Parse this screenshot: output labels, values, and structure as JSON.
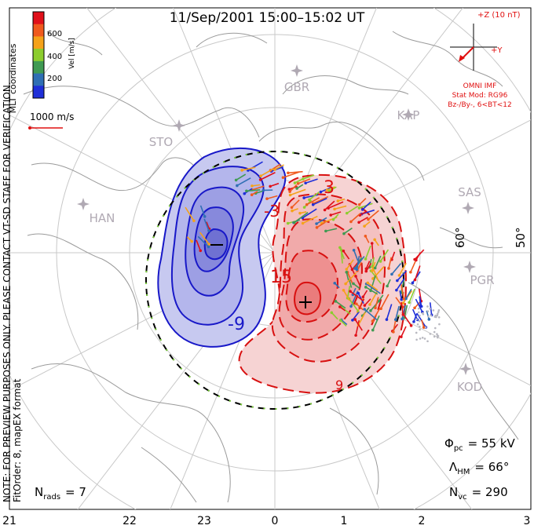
{
  "header": {
    "title": "11/Sep/2001  15:00–15:02  UT"
  },
  "colorbar": {
    "label": "Vel [m/s]",
    "ticks": [
      "600",
      "400",
      "200"
    ],
    "colors": [
      "#e0101a",
      "#f05a1e",
      "#f5a21a",
      "#8ccd2e",
      "#3f9a52",
      "#2f6fb4",
      "#1f2fd8"
    ]
  },
  "side_labels": {
    "coords": "MLT coordinates",
    "note": "NOTE: FOR PREVIEW PURPOSES ONLY. PLEASE CONTACT VT-SD STAFF FOR VERIFICATION.",
    "fit": "FitOrder: 8, mapEX format"
  },
  "scale": {
    "label": "1000 m/s"
  },
  "imf": {
    "bz_label": "+Z (10 nT)",
    "by_label": "+Y",
    "model_lines": [
      "OMNI IMF",
      "Stat Mod: RG96",
      "Bz-/By-, 6<BT<12"
    ]
  },
  "stations": [
    "GBR",
    "STO",
    "KAP",
    "HAN",
    "SAS",
    "PGR",
    "KOD"
  ],
  "latitudes": [
    "60°",
    "50°"
  ],
  "contours": {
    "labels": [
      "3",
      "-3",
      "-9",
      "15",
      "9"
    ]
  },
  "stats": {
    "phi_sym": "Φ",
    "phi_sub": "pc",
    "phi_val": "=  55 kV",
    "lam_sym": "Λ",
    "lam_sub": "HM",
    "lam_val": "=  66°",
    "nvc_sym": "N",
    "nvc_sub": "vc",
    "nvc_val": "=  290",
    "nrads_sym": "N",
    "nrads_sub": "rads",
    "nrads_val": "=  7"
  },
  "mlt_axis": [
    "21",
    "22",
    "23",
    "0",
    "1",
    "2",
    "3"
  ],
  "accent_colors": {
    "positive": "#e01010",
    "negative": "#1a1ad0"
  }
}
